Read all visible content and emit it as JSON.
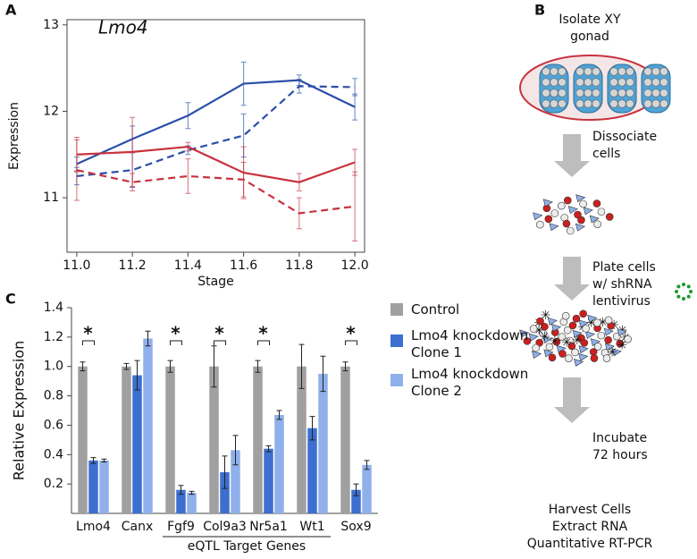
{
  "panel_labels": [
    "A",
    "B",
    "C"
  ],
  "chart_data": [
    {
      "type": "line",
      "annotation": "Lmo4",
      "annotation_color": "#1f2fc4",
      "x_label": "Stage",
      "y_label": "Expression",
      "x": [
        11.0,
        11.2,
        11.4,
        11.6,
        11.8,
        12.0
      ],
      "xlim": [
        10.965,
        12.035
      ],
      "xticks": [
        {
          "value": 11.0,
          "label": "11.0"
        },
        11.2,
        11.4,
        11.6,
        11.8,
        {
          "value": 12.0,
          "label": "12.0"
        }
      ],
      "ylim": [
        10.37,
        13.06
      ],
      "yticks": [
        11,
        12,
        13
      ],
      "series": [
        {
          "color": "#2b4fa8",
          "dashed": false,
          "values": [
            11.39,
            11.68,
            11.95,
            12.32,
            12.36,
            12.05
          ],
          "errors": [
            0.08,
            0.15,
            0.15,
            0.25,
            0.06,
            0.15
          ]
        },
        {
          "color": "#2b4fa8",
          "dashed": true,
          "values": [
            11.25,
            11.32,
            11.55,
            11.72,
            12.29,
            12.28
          ],
          "errors": [
            0.1,
            0.2,
            0.05,
            0.25,
            0.08,
            0.1
          ]
        },
        {
          "color": "#c8323e",
          "dashed": false,
          "values": [
            11.5,
            11.53,
            11.59,
            11.29,
            11.18,
            11.41
          ],
          "errors": [
            0.2,
            0.4,
            0.05,
            0.3,
            0.1,
            0.15
          ]
        },
        {
          "color": "#c8323e",
          "dashed": true,
          "values": [
            11.32,
            11.18,
            11.25,
            11.21,
            10.82,
            10.9
          ],
          "errors": [
            0.35,
            0.1,
            0.2,
            0.2,
            0.18,
            0.4
          ]
        }
      ]
    },
    {
      "type": "bar",
      "y_label": "Relative Expression",
      "group_label": "eQTL Target Genes",
      "categories": [
        "Lmo4",
        "Canx",
        "Fgf9",
        "Col9a3",
        "Nr5a1",
        "Wt1",
        "Sox9"
      ],
      "significance": [
        "*",
        null,
        "*",
        "*",
        "*",
        null,
        "*"
      ],
      "ylim": [
        0,
        1.4
      ],
      "yticks": [
        0.2,
        0.4,
        0.6,
        0.8,
        {
          "value": 1.0,
          "label": "1.0"
        },
        1.2,
        1.4
      ],
      "series": [
        {
          "name": "Control",
          "color": "#a0a0a0",
          "values": [
            1.0,
            1.0,
            1.0,
            1.0,
            1.0,
            1.0,
            1.0
          ],
          "errors": [
            0.03,
            0.02,
            0.04,
            0.14,
            0.04,
            0.15,
            0.03
          ]
        },
        {
          "name": "Lmo4 knockdown Clone 1",
          "color": "#3c6fd0",
          "values": [
            0.36,
            0.94,
            0.16,
            0.28,
            0.44,
            0.58,
            0.16
          ],
          "errors": [
            0.02,
            0.1,
            0.03,
            0.11,
            0.02,
            0.08,
            0.04
          ]
        },
        {
          "name": "Lmo4 knockdown Clone 2",
          "color": "#8fb0ea",
          "values": [
            0.36,
            1.19,
            0.14,
            0.43,
            0.67,
            0.95,
            0.33
          ],
          "errors": [
            0.01,
            0.05,
            0.01,
            0.1,
            0.03,
            0.12,
            0.03
          ]
        }
      ]
    }
  ],
  "diagram": {
    "steps": [
      {
        "lines": [
          "Isolate XY",
          "gonad"
        ]
      },
      {
        "lines": [
          "Dissociate",
          "cells"
        ]
      },
      {
        "lines": [
          "Plate cells",
          "w/ shRNA",
          "lentivirus"
        ]
      },
      {
        "lines": [
          "Incubate",
          "72 hours"
        ]
      },
      {
        "lines": [
          "Harvest Cells",
          "Extract RNA",
          "Quantitative RT-PCR"
        ]
      }
    ]
  }
}
